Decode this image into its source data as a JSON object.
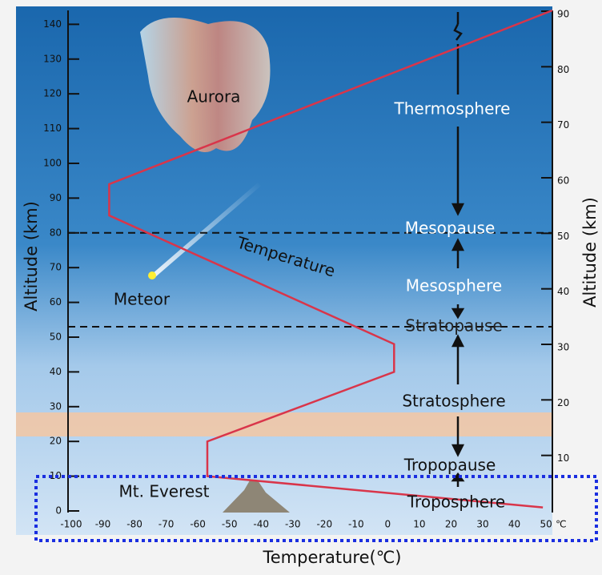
{
  "chart_data": {
    "type": "line",
    "x_label": "Temperature(℃)",
    "y_label": "Altitude (km)",
    "y2_label": "Altitude (km)",
    "x_unit": "℃",
    "xlim": [
      -101,
      52
    ],
    "xticks": [
      -100,
      -90,
      -80,
      -70,
      -60,
      -50,
      -40,
      -30,
      -20,
      -10,
      0,
      10,
      20,
      30,
      40,
      50
    ],
    "ylim": [
      0,
      144
    ],
    "yticks": [
      0,
      10,
      20,
      30,
      40,
      50,
      60,
      70,
      80,
      90,
      100,
      110,
      120,
      130,
      140
    ],
    "y2lim": [
      0,
      90
    ],
    "y2ticks": [
      10,
      20,
      30,
      40,
      50,
      60,
      70,
      80,
      90
    ],
    "series": [
      {
        "name": "Temperature",
        "color": "#d9354a",
        "x": [
          49,
          -57,
          -57,
          2,
          2,
          -88,
          -88,
          52
        ],
        "values": [
          1,
          10,
          20,
          40,
          48,
          85,
          94,
          144
        ]
      }
    ],
    "reference_lines": [
      80,
      53
    ],
    "annotations": [
      "Aurora",
      "Meteor",
      "Mt. Everest",
      "Thermosphere",
      "Mesopause",
      "Mesosphere",
      "Stratopause",
      "Stratosphere",
      "Tropopause",
      "Troposphere"
    ]
  }
}
